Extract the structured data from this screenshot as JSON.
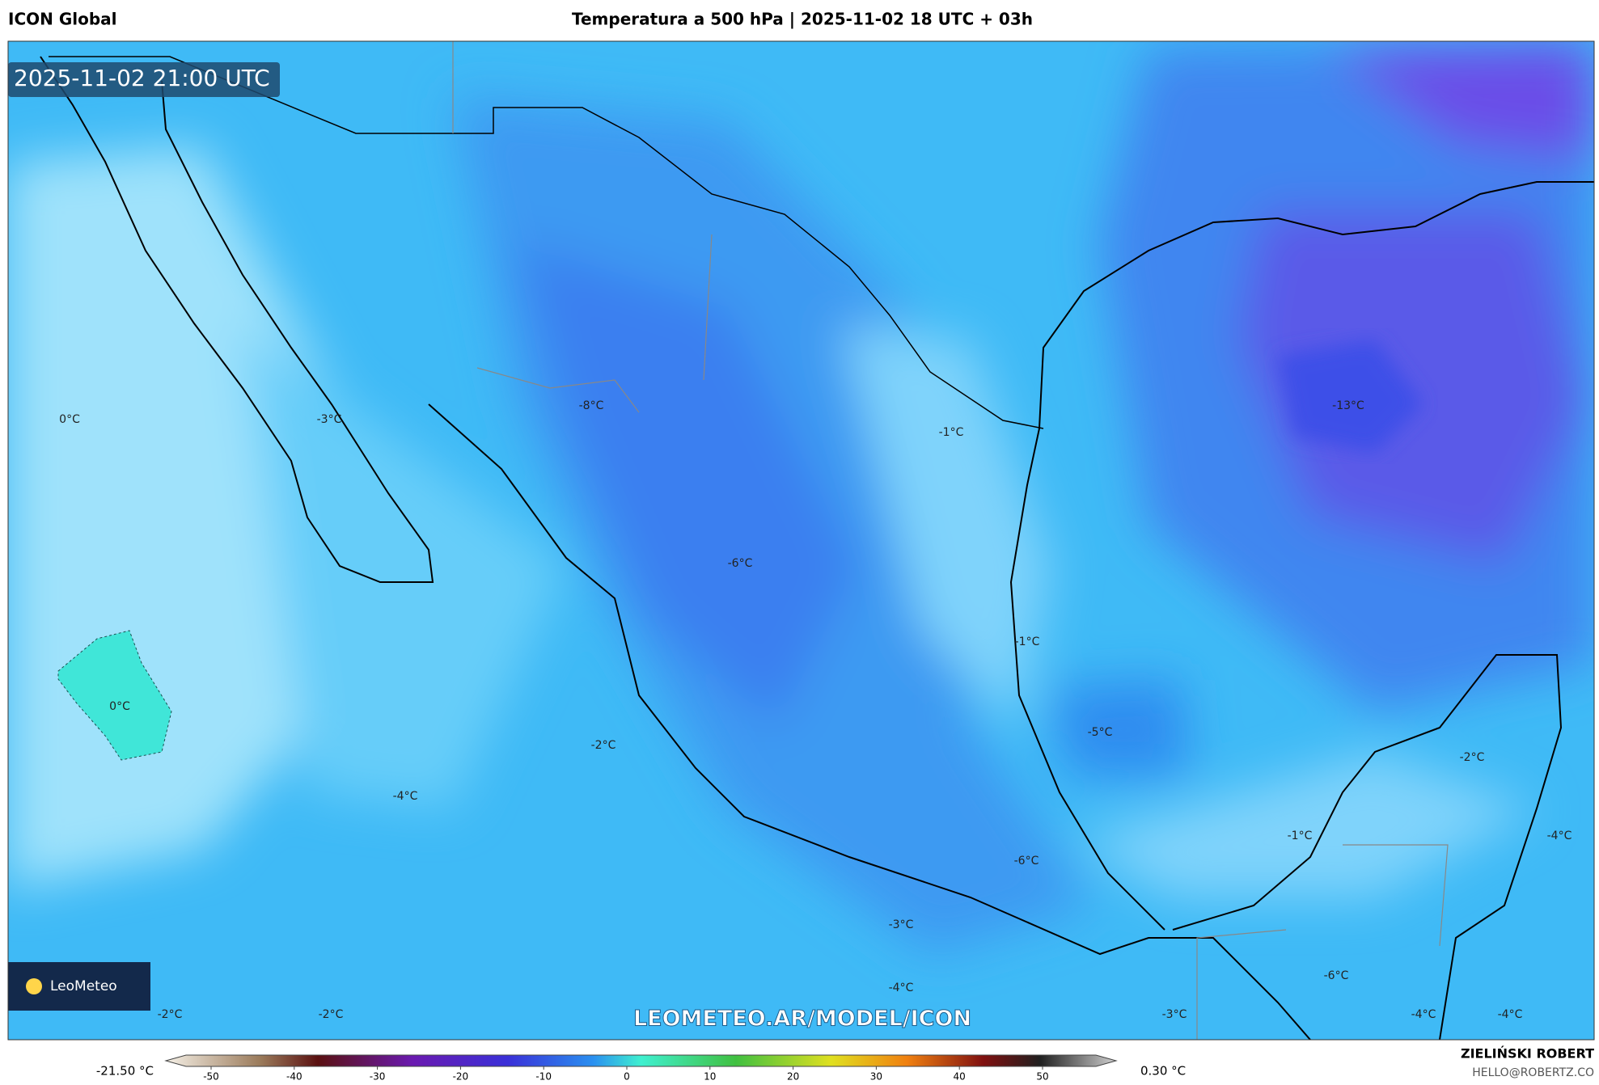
{
  "header": {
    "model": "ICON Global",
    "title": "Temperatura a 500 hPa | 2025-11-02 18 UTC + 03h"
  },
  "map": {
    "valid_time": "2025-11-02 21:00 UTC",
    "watermark": "LEOMETEO.AR/MODEL/ICON",
    "logo": "LeoMeteo",
    "labels": [
      "0°C",
      "-3°C",
      "-8°C",
      "-1°C",
      "-13°C",
      "-6°C",
      "-1°C",
      "0°C",
      "-2°C",
      "-5°C",
      "-2°C",
      "-4°C",
      "-1°C",
      "-4°C",
      "-6°C",
      "-3°C",
      "-4°C",
      "-6°C",
      "-2°C",
      "-2°C",
      "-3°C",
      "-4°C",
      "-4°C"
    ]
  },
  "colorbar": {
    "min_label": "-21.50 °C",
    "max_label": "0.30 °C",
    "ticks": [
      -50,
      -40,
      -30,
      -20,
      -10,
      0,
      10,
      20,
      30,
      40,
      50
    ]
  },
  "footer": {
    "author": "ZIELIŃSKI ROBERT",
    "contact": "HELLO@ROBERTZ.CO"
  }
}
